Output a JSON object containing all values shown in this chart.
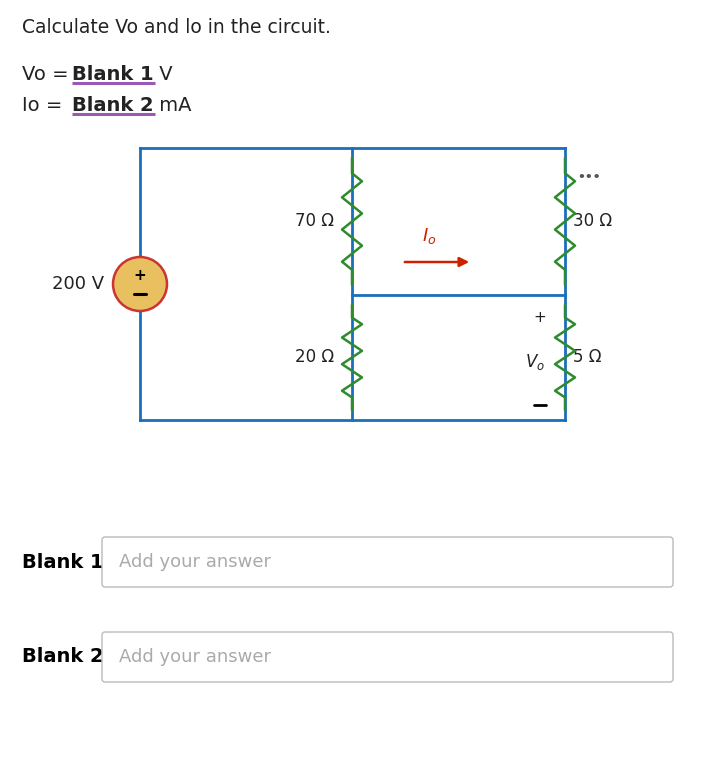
{
  "title": "Calculate Vo and lo in the circuit.",
  "vo_blank": "Blank 1",
  "vo_unit": " V",
  "io_blank": "Blank 2",
  "io_unit": " mA",
  "underline_color": "#9b59b6",
  "source_color": "#e8c060",
  "source_border": "#cc3333",
  "circuit_color": "#1a6fba",
  "resistor_color": "#2e8b2e",
  "R1_label": "70 Ω",
  "R2_label": "20 Ω",
  "R3_label": "30 Ω",
  "R4_label": "5 Ω",
  "arrow_color": "#cc2200",
  "answer_placeholder": "Add your answer",
  "box_border_color": "#bbbbbb",
  "dots_color": "#555555",
  "bg_color": "#ffffff",
  "text_color": "#222222",
  "plus_minus_color": "#222222"
}
